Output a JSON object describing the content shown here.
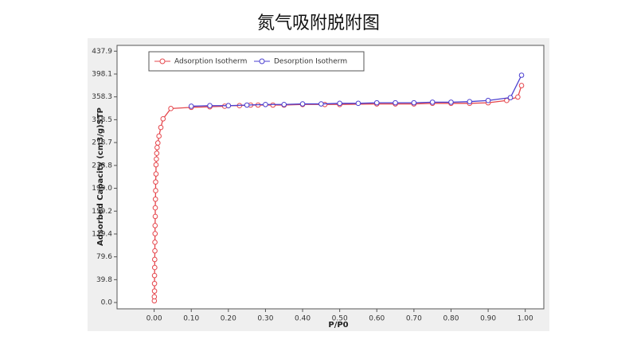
{
  "chart_data": {
    "type": "line",
    "title": "氮气吸附脱附图",
    "xlabel": "P/P0",
    "ylabel": "Adsorbed Capacity (cm3/g)STP",
    "xlim": [
      -0.1,
      1.05
    ],
    "ylim": [
      -11,
      448
    ],
    "xticks": [
      {
        "value": 0,
        "label": "0.00"
      },
      {
        "value": 0.1,
        "label": "0.10"
      },
      {
        "value": 0.2,
        "label": "0.20"
      },
      {
        "value": 0.3,
        "label": "0.30"
      },
      {
        "value": 0.4,
        "label": "0.40"
      },
      {
        "value": 0.5,
        "label": "0.50"
      },
      {
        "value": 0.6,
        "label": "0.60"
      },
      {
        "value": 0.7,
        "label": "0.70"
      },
      {
        "value": 0.8,
        "label": "0.80"
      },
      {
        "value": 0.9,
        "label": "0.90"
      },
      {
        "value": 1,
        "label": "1.00"
      }
    ],
    "yticks": [
      {
        "value": 0,
        "label": "0.0"
      },
      39.8,
      79.6,
      119.4,
      159.2,
      {
        "value": 199,
        "label": "199.0"
      },
      238.8,
      278.7,
      318.5,
      358.3,
      398.1,
      437.9
    ],
    "legend": "upper left",
    "series": [
      {
        "name": "Adsorption Isotherm",
        "color": "#e5474d",
        "x": [
          0.0005,
          0.0005,
          0.001,
          0.001,
          0.001,
          0.0015,
          0.0015,
          0.002,
          0.002,
          0.0025,
          0.0025,
          0.003,
          0.003,
          0.0035,
          0.004,
          0.004,
          0.005,
          0.005,
          0.006,
          0.007,
          0.008,
          0.01,
          0.013,
          0.018,
          0.024,
          0.045,
          0.1,
          0.15,
          0.19,
          0.2,
          0.23,
          0.26,
          0.28,
          0.32,
          0.35,
          0.4,
          0.46,
          0.5,
          0.6,
          0.65,
          0.7,
          0.75,
          0.8,
          0.85,
          0.9,
          0.95,
          0.98,
          0.99
        ],
        "values": [
          3,
          10,
          20,
          33,
          47,
          61,
          75,
          90,
          105,
          120,
          134,
          150,
          165,
          180,
          195,
          210,
          224,
          240,
          250,
          260,
          270,
          278,
          290,
          305,
          320,
          338,
          340,
          341,
          342,
          343,
          343,
          344,
          344,
          344,
          344,
          345,
          345,
          345,
          346,
          346,
          346,
          347,
          347,
          347,
          348,
          352,
          358,
          378
        ]
      },
      {
        "name": "Desorption Isotherm",
        "color": "#4b3fd0",
        "x": [
          0.1,
          0.15,
          0.2,
          0.25,
          0.3,
          0.35,
          0.4,
          0.45,
          0.5,
          0.55,
          0.6,
          0.65,
          0.7,
          0.75,
          0.8,
          0.85,
          0.9,
          0.96,
          0.99
        ],
        "values": [
          342,
          343,
          343,
          344,
          345,
          345,
          346,
          346,
          347,
          347,
          348,
          348,
          348,
          349,
          349,
          350,
          352,
          357,
          396
        ]
      }
    ]
  }
}
